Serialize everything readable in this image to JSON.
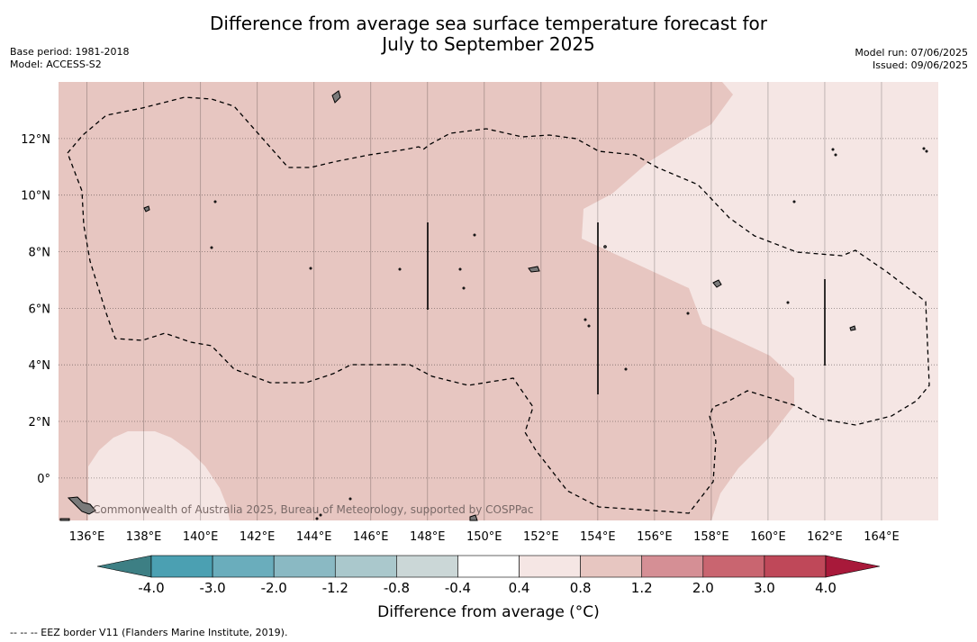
{
  "header": {
    "title_line1": "Difference from average sea surface temperature forecast for",
    "title_line2": "July to September 2025",
    "base_period": "Base period: 1981-2018",
    "model": "Model: ACCESS-S2",
    "model_run": "Model run: 07/06/2025",
    "issued": "Issued: 09/06/2025"
  },
  "map": {
    "lon_ticks": [
      "136°E",
      "138°E",
      "140°E",
      "142°E",
      "144°E",
      "146°E",
      "148°E",
      "150°E",
      "152°E",
      "154°E",
      "156°E",
      "158°E",
      "160°E",
      "162°E",
      "164°E"
    ],
    "lat_ticks": [
      "12°N",
      "10°N",
      "8°N",
      "6°N",
      "4°N",
      "2°N",
      "0°"
    ],
    "lon_range": [
      135,
      166
    ],
    "lat_range": [
      -1.5,
      14
    ],
    "grid": true,
    "watermark": "Commonwealth of Australia 2025, Bureau of Meteorology, supported by COSPPac",
    "colors": {
      "band_0_4_to_0_8": "#f5e6e4",
      "band_0_8_to_1_2": "#e7c6c1",
      "land": "#7a7a7a"
    }
  },
  "colorbar": {
    "labels": [
      "-4.0",
      "-3.0",
      "-2.0",
      "-1.2",
      "-0.8",
      "-0.4",
      "0.4",
      "0.8",
      "1.2",
      "2.0",
      "3.0",
      "4.0"
    ],
    "colors": [
      "#4ba0b2",
      "#6aadbc",
      "#8ab9c3",
      "#aac8cc",
      "#cbd7d7",
      "#ffffff",
      "#f5e6e4",
      "#e7c6c1",
      "#d58f95",
      "#c96570",
      "#bf4859"
    ],
    "extend_low_color": "#3d7f84",
    "extend_high_color": "#a8193a",
    "title": "Difference from average (°C)"
  },
  "footnote": "--  --  -- EEZ border V11 (Flanders Marine Institute, 2019)."
}
